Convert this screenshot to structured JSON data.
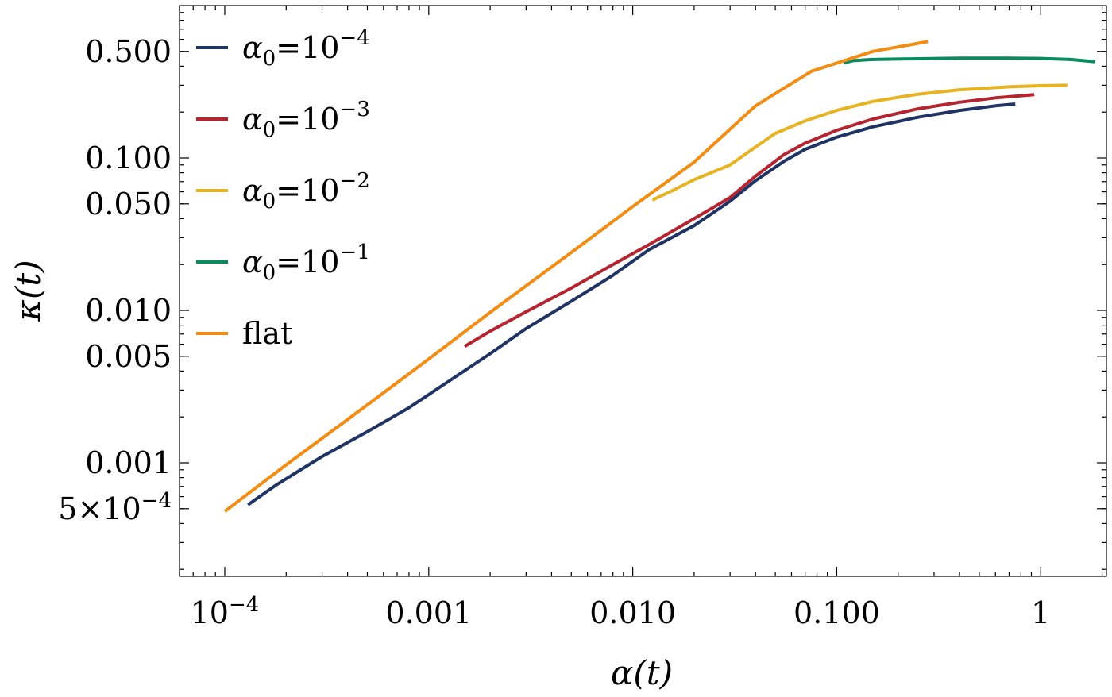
{
  "chart_data": {
    "type": "line",
    "xscale": "log",
    "yscale": "log",
    "xlabel": "α(t)",
    "ylabel": "κ(t)",
    "xlim": [
      6e-05,
      2.1
    ],
    "ylim": [
      0.00018,
      1.0
    ],
    "x_ticks": [
      {
        "value": 0.0001,
        "base": "10",
        "exp": "−4"
      },
      {
        "value": 0.001,
        "text": "0.001"
      },
      {
        "value": 0.01,
        "text": "0.010"
      },
      {
        "value": 0.1,
        "text": "0.100"
      },
      {
        "value": 1,
        "text": "1"
      }
    ],
    "y_ticks": [
      {
        "value": 0.0005,
        "base": "5×10",
        "exp": "−4"
      },
      {
        "value": 0.001,
        "text": "0.001"
      },
      {
        "value": 0.005,
        "text": "0.005"
      },
      {
        "value": 0.01,
        "text": "0.010"
      },
      {
        "value": 0.05,
        "text": "0.050"
      },
      {
        "value": 0.1,
        "text": "0.100"
      },
      {
        "value": 0.5,
        "text": "0.500"
      }
    ],
    "legend_position": "top-left",
    "series": [
      {
        "id": "a4",
        "name": "α0=10−4",
        "legend": {
          "sym": "α",
          "sub": "0",
          "eq": "=10",
          "exp": "−4"
        },
        "color": "#1f3464",
        "points": [
          [
            0.00013,
            0.00053
          ],
          [
            0.00018,
            0.00072
          ],
          [
            0.0003,
            0.0011
          ],
          [
            0.0005,
            0.0016
          ],
          [
            0.0008,
            0.0023
          ],
          [
            0.0012,
            0.0033
          ],
          [
            0.002,
            0.0052
          ],
          [
            0.003,
            0.0076
          ],
          [
            0.005,
            0.0115
          ],
          [
            0.008,
            0.017
          ],
          [
            0.012,
            0.025
          ],
          [
            0.02,
            0.036
          ],
          [
            0.03,
            0.052
          ],
          [
            0.04,
            0.071
          ],
          [
            0.055,
            0.095
          ],
          [
            0.07,
            0.114
          ],
          [
            0.1,
            0.137
          ],
          [
            0.15,
            0.16
          ],
          [
            0.25,
            0.185
          ],
          [
            0.4,
            0.205
          ],
          [
            0.6,
            0.22
          ],
          [
            0.75,
            0.226
          ]
        ]
      },
      {
        "id": "a3",
        "name": "α0=10−3",
        "legend": {
          "sym": "α",
          "sub": "0",
          "eq": "=10",
          "exp": "−3"
        },
        "color": "#b5252f",
        "points": [
          [
            0.0015,
            0.0058
          ],
          [
            0.002,
            0.0073
          ],
          [
            0.003,
            0.0098
          ],
          [
            0.005,
            0.014
          ],
          [
            0.008,
            0.02
          ],
          [
            0.012,
            0.027
          ],
          [
            0.02,
            0.04
          ],
          [
            0.03,
            0.055
          ],
          [
            0.04,
            0.076
          ],
          [
            0.055,
            0.105
          ],
          [
            0.07,
            0.125
          ],
          [
            0.1,
            0.152
          ],
          [
            0.15,
            0.18
          ],
          [
            0.25,
            0.21
          ],
          [
            0.4,
            0.232
          ],
          [
            0.6,
            0.248
          ],
          [
            0.93,
            0.26
          ]
        ]
      },
      {
        "id": "a2",
        "name": "α0=10−2",
        "legend": {
          "sym": "α",
          "sub": "0",
          "eq": "=10",
          "exp": "−2"
        },
        "color": "#e8b321",
        "points": [
          [
            0.0125,
            0.053
          ],
          [
            0.016,
            0.062
          ],
          [
            0.02,
            0.072
          ],
          [
            0.03,
            0.09
          ],
          [
            0.04,
            0.118
          ],
          [
            0.05,
            0.145
          ],
          [
            0.07,
            0.175
          ],
          [
            0.1,
            0.205
          ],
          [
            0.15,
            0.235
          ],
          [
            0.25,
            0.262
          ],
          [
            0.4,
            0.28
          ],
          [
            0.7,
            0.293
          ],
          [
            1.0,
            0.298
          ],
          [
            1.35,
            0.3
          ]
        ]
      },
      {
        "id": "a1",
        "name": "α0=10−1",
        "legend": {
          "sym": "α",
          "sub": "0",
          "eq": "=10",
          "exp": "−1"
        },
        "color": "#0a8a5f",
        "points": [
          [
            0.108,
            0.42
          ],
          [
            0.12,
            0.435
          ],
          [
            0.15,
            0.443
          ],
          [
            0.25,
            0.448
          ],
          [
            0.4,
            0.452
          ],
          [
            0.7,
            0.452
          ],
          [
            1.0,
            0.45
          ],
          [
            1.4,
            0.443
          ],
          [
            1.85,
            0.428
          ]
        ]
      },
      {
        "id": "flat",
        "name": "flat",
        "legend": {
          "text": "flat"
        },
        "color": "#f28c12",
        "points": [
          [
            0.0001,
            0.00048
          ],
          [
            0.0002,
            0.00097
          ],
          [
            0.0005,
            0.0024
          ],
          [
            0.001,
            0.0048
          ],
          [
            0.002,
            0.0097
          ],
          [
            0.005,
            0.024
          ],
          [
            0.01,
            0.048
          ],
          [
            0.02,
            0.094
          ],
          [
            0.04,
            0.22
          ],
          [
            0.075,
            0.37
          ],
          [
            0.15,
            0.5
          ],
          [
            0.28,
            0.58
          ]
        ]
      }
    ]
  }
}
